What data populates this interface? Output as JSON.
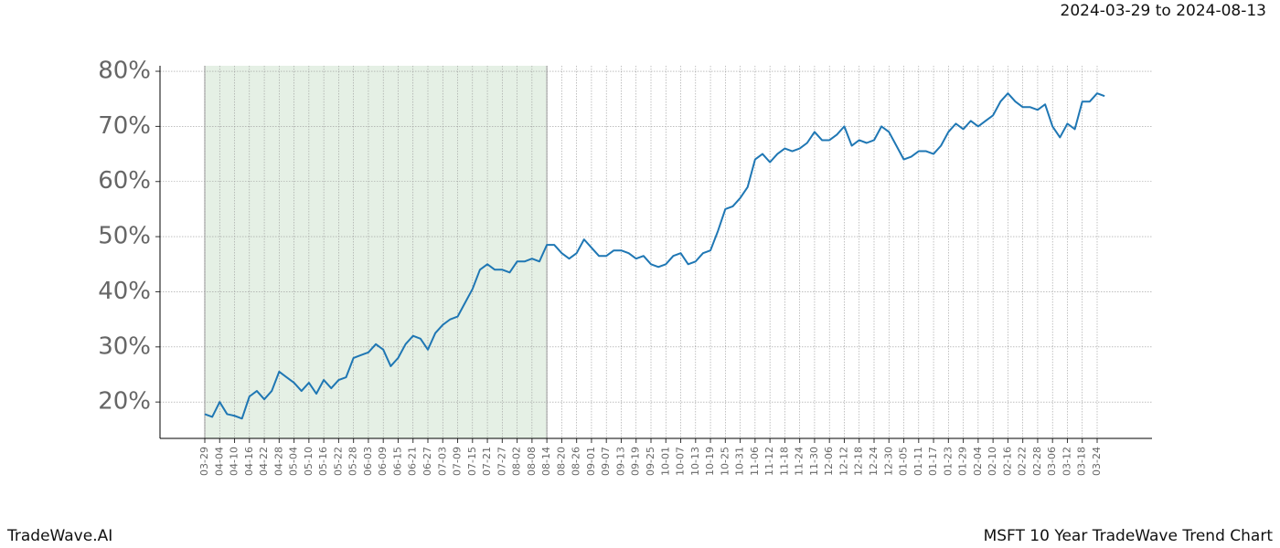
{
  "chart_data": {
    "type": "line",
    "title": "MSFT 10 Year TradeWave Trend Chart",
    "subtitle": "2024-03-29 to 2024-08-13",
    "brand": "TradeWave.AI",
    "categories": [
      "03-29",
      null,
      "04-04",
      null,
      "04-10",
      null,
      "04-16",
      null,
      "04-22",
      null,
      "04-28",
      null,
      "05-04",
      null,
      "05-10",
      null,
      "05-16",
      null,
      "05-22",
      null,
      "05-28",
      null,
      "06-03",
      null,
      "06-09",
      null,
      "06-15",
      null,
      "06-21",
      null,
      "06-27",
      null,
      "07-03",
      null,
      "07-09",
      null,
      "07-15",
      null,
      "07-21",
      null,
      "07-27",
      null,
      "08-02",
      null,
      "08-08",
      null,
      "08-14",
      null,
      "08-20",
      null,
      "08-26",
      null,
      "09-01",
      null,
      "09-07",
      null,
      "09-13",
      null,
      "09-19",
      null,
      "09-25",
      null,
      "10-01",
      null,
      "10-07",
      null,
      "10-13",
      null,
      "10-19",
      null,
      "10-25",
      null,
      "10-31",
      null,
      "11-06",
      null,
      "11-12",
      null,
      "11-18",
      null,
      "11-24",
      null,
      "11-30",
      null,
      "12-06",
      null,
      "12-12",
      null,
      "12-18",
      null,
      "12-24",
      null,
      "12-30",
      null,
      "01-05",
      null,
      "01-11",
      null,
      "01-17",
      null,
      "01-23",
      null,
      "01-29",
      null,
      "02-04",
      null,
      "02-10",
      null,
      "02-16",
      null,
      "02-22",
      null,
      "02-28",
      null,
      "03-06",
      null,
      "03-12",
      null,
      "03-18",
      null,
      "03-24",
      null
    ],
    "series": [
      {
        "color": "#1f77b4",
        "values": [
          17.8,
          17.3,
          20,
          17.8,
          17.5,
          17,
          21,
          22,
          20.5,
          22,
          25.5,
          24.5,
          23.5,
          22,
          23.5,
          21.5,
          24,
          22.5,
          24,
          24.5,
          28,
          28.5,
          29,
          30.5,
          29.5,
          26.5,
          28,
          30.5,
          32,
          31.5,
          29.5,
          32.5,
          34,
          35,
          35.5,
          38,
          40.5,
          44,
          45,
          44,
          44,
          43.5,
          45.5,
          45.5,
          46,
          45.5,
          48.5,
          48.5,
          47,
          46,
          47,
          49.5,
          48,
          46.5,
          46.5,
          47.5,
          47.5,
          47,
          46,
          46.5,
          45,
          44.5,
          45,
          46.5,
          47,
          45,
          45.5,
          47,
          47.5,
          51,
          55,
          55.5,
          57,
          59,
          64,
          65,
          63.5,
          65,
          66,
          65.5,
          66,
          67,
          69,
          67.5,
          67.5,
          68.5,
          70,
          66.5,
          67.5,
          67,
          67.5,
          70,
          69,
          66.5,
          64,
          64.5,
          65.5,
          65.5,
          65,
          66.5,
          69,
          70.5,
          69.5,
          71,
          70,
          71,
          72,
          74.5,
          76,
          74.5,
          73.5,
          73.5,
          73,
          74,
          70,
          68,
          70.5,
          69.5,
          74.5,
          74.5,
          76,
          75.5
        ]
      }
    ],
    "highlight": {
      "from": "03-29",
      "to": "08-14",
      "color": "#e5f0e5"
    },
    "ylim": [
      13.4,
      81
    ],
    "yticks": [
      {
        "value": 20,
        "label": "20%"
      },
      {
        "value": 30,
        "label": "30%"
      },
      {
        "value": 40,
        "label": "40%"
      },
      {
        "value": 50,
        "label": "50%"
      },
      {
        "value": 60,
        "label": "60%"
      },
      {
        "value": 70,
        "label": "70%"
      },
      {
        "value": 80,
        "label": "80%"
      }
    ],
    "grid": true
  }
}
